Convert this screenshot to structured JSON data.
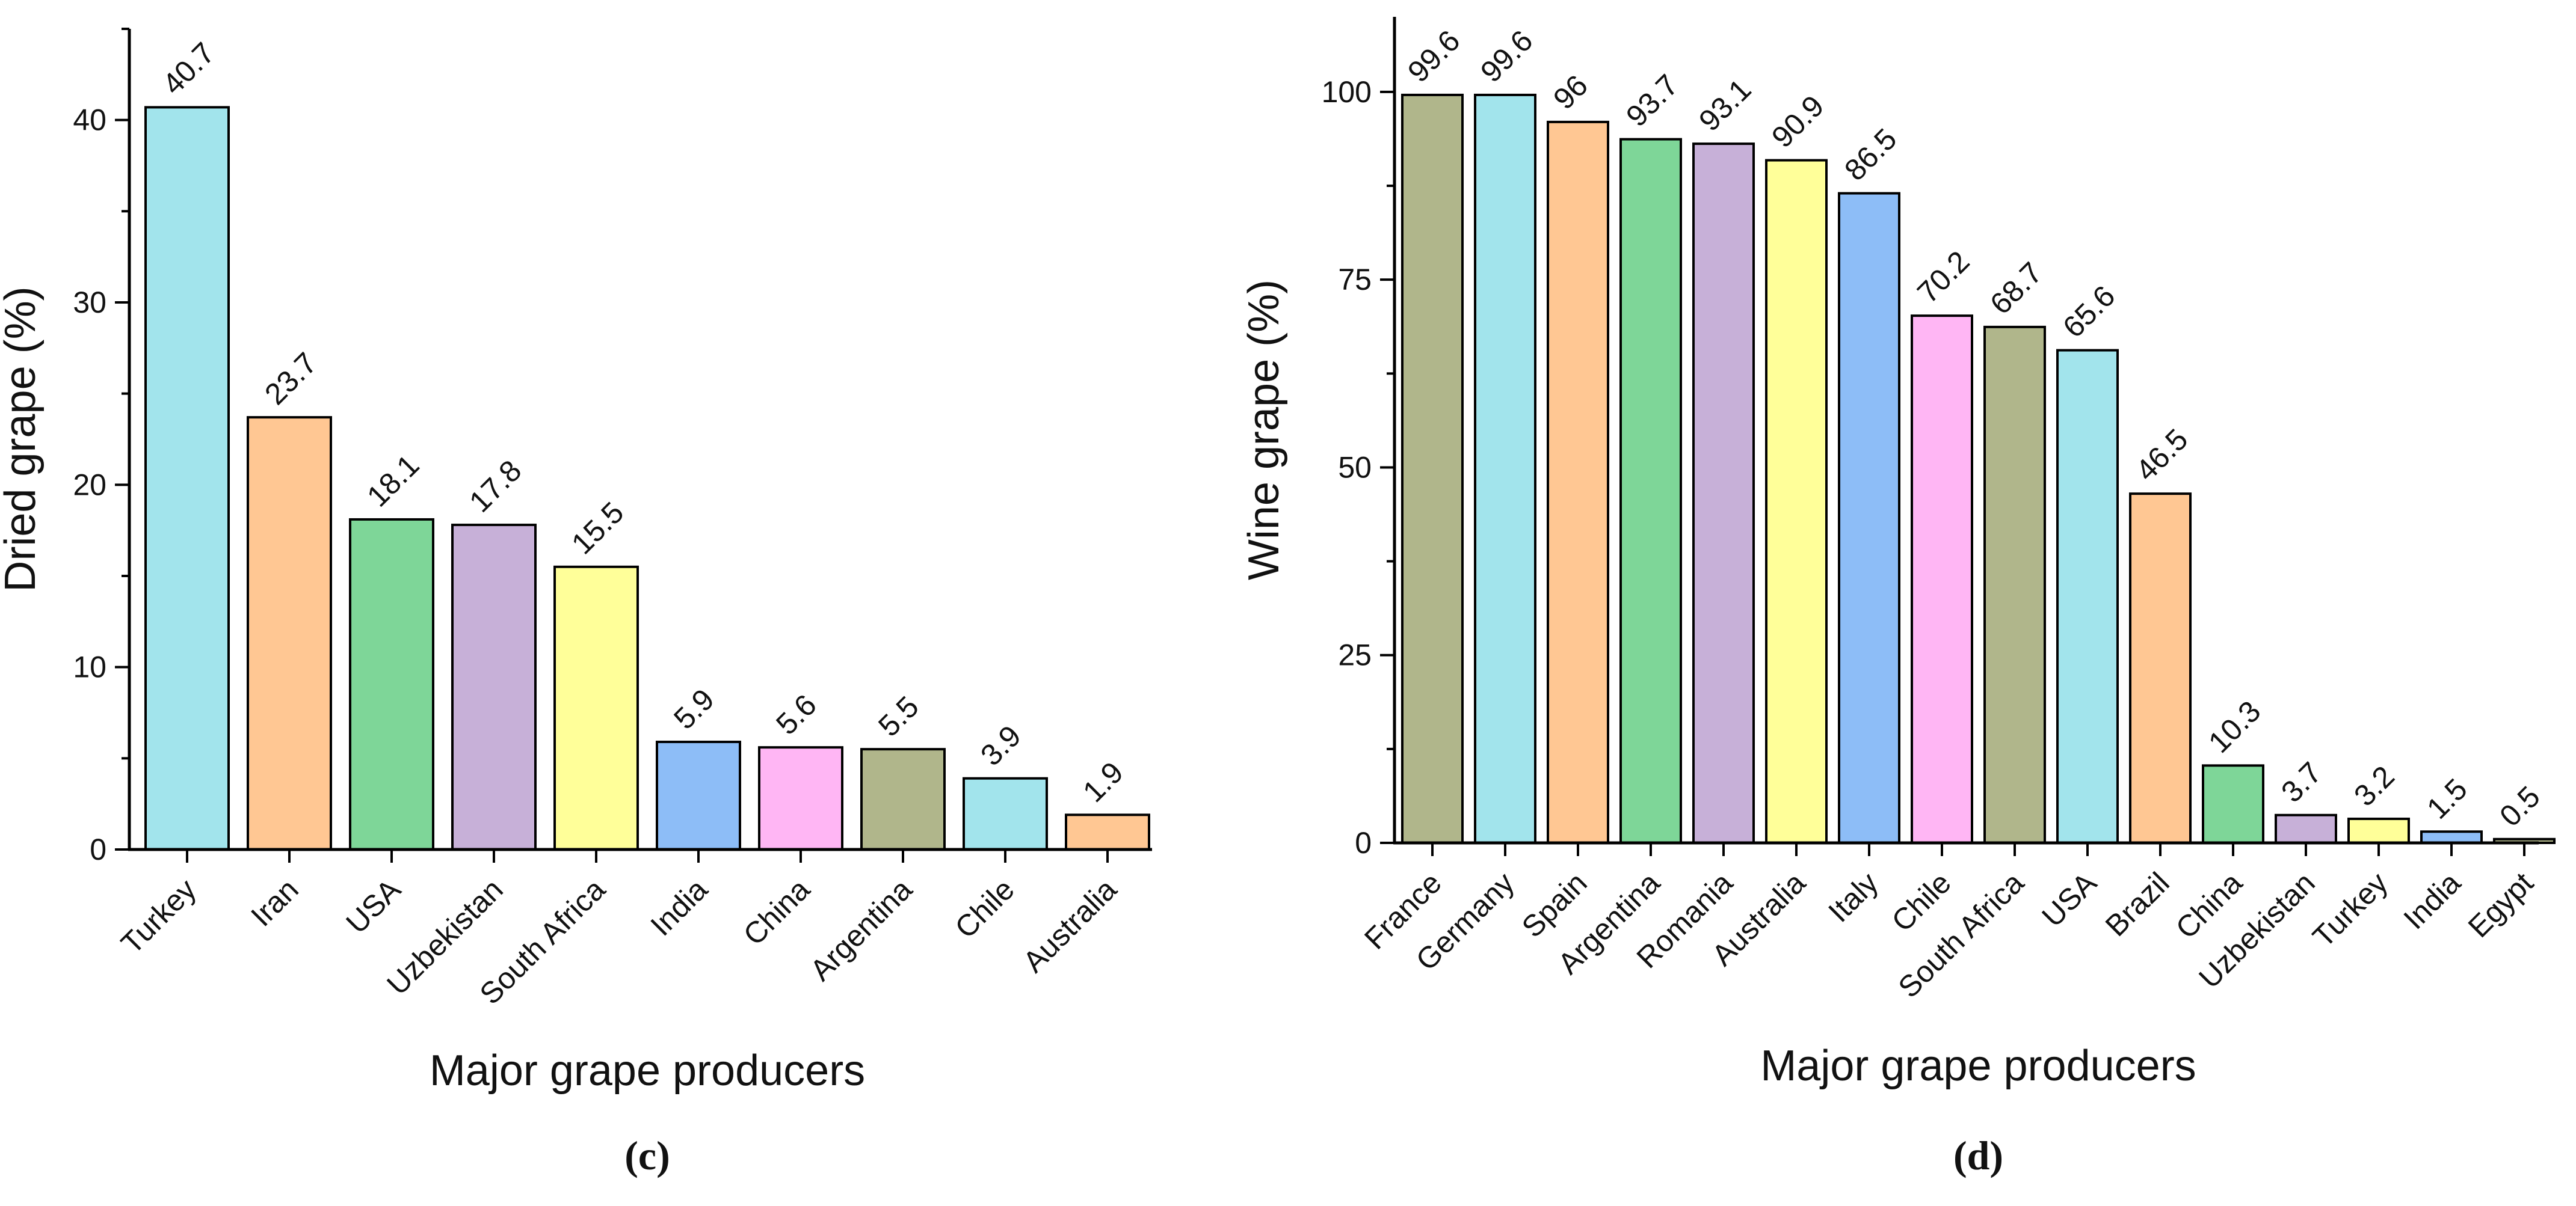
{
  "chart_data": [
    {
      "type": "bar",
      "panel_label": "(c)",
      "title": "",
      "xlabel": "Major grape producers",
      "ylabel": "Dried grape (%)",
      "ylim": [
        0,
        45
      ],
      "yticks": [
        0,
        10,
        20,
        30,
        40
      ],
      "grid": false,
      "categories": [
        "Turkey",
        "Iran",
        "USA",
        "Uzbekistan",
        "South Africa",
        "India",
        "China",
        "Argentina",
        "Chile",
        "Australia"
      ],
      "values": [
        40.7,
        23.7,
        18.1,
        17.8,
        15.5,
        5.9,
        5.6,
        5.5,
        3.9,
        1.9
      ],
      "value_labels": [
        "40.7",
        "23.7",
        "18.1",
        "17.8",
        "15.5",
        "5.9",
        "5.6",
        "5.5",
        "3.9",
        "1.9"
      ],
      "colors": [
        "#a2e4ec",
        "#ffc793",
        "#7ed698",
        "#c7b0d8",
        "#ffff99",
        "#8dbdf7",
        "#ffb6f4",
        "#b0b68b",
        "#a2e4ec",
        "#ffc793"
      ]
    },
    {
      "type": "bar",
      "panel_label": "(d)",
      "title": "",
      "xlabel": "Major grape producers",
      "ylabel": "Wine grape (%)",
      "ylim": [
        0,
        110
      ],
      "yticks": [
        0,
        25,
        50,
        75,
        100
      ],
      "grid": false,
      "categories": [
        "France",
        "Germany",
        "Spain",
        "Argentina",
        "Romania",
        "Australia",
        "Italy",
        "Chile",
        "South Africa",
        "USA",
        "Brazil",
        "China",
        "Uzbekistan",
        "Turkey",
        "India",
        "Egypt"
      ],
      "values": [
        99.6,
        99.6,
        96,
        93.7,
        93.1,
        90.9,
        86.5,
        70.2,
        68.7,
        65.6,
        46.5,
        10.3,
        3.7,
        3.2,
        1.5,
        0.5
      ],
      "value_labels": [
        "99.6",
        "99.6",
        "96",
        "93.7",
        "93.1",
        "90.9",
        "86.5",
        "70.2",
        "68.7",
        "65.6",
        "46.5",
        "10.3",
        "3.7",
        "3.2",
        "1.5",
        "0.5"
      ],
      "colors": [
        "#b0b68b",
        "#a2e4ec",
        "#ffc793",
        "#7ed698",
        "#c7b0d8",
        "#ffff99",
        "#8dbdf7",
        "#ffb6f4",
        "#b0b68b",
        "#a2e4ec",
        "#ffc793",
        "#7ed698",
        "#c7b0d8",
        "#ffff99",
        "#8dbdf7",
        "#b0b68b"
      ]
    }
  ]
}
